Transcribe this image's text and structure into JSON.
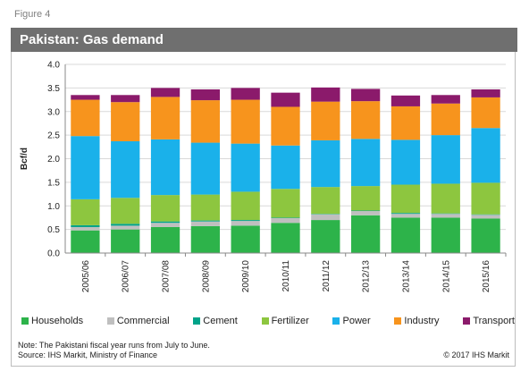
{
  "figure_label": "Figure 4",
  "chart_data": {
    "type": "bar",
    "stacked": true,
    "title": "Pakistan: Gas demand",
    "ylabel": "Bcf/d",
    "xlabel": "",
    "ylim": [
      0,
      4.0
    ],
    "yticks": [
      "0.0",
      "0.5",
      "1.0",
      "1.5",
      "2.0",
      "2.5",
      "3.0",
      "3.5",
      "4.0"
    ],
    "grid": true,
    "legend_position": "bottom",
    "categories": [
      "2005/06",
      "2006/07",
      "2007/08",
      "2008/09",
      "2009/10",
      "2010/11",
      "2011/12",
      "2012/13",
      "2013/14",
      "2014/15",
      "2015/16"
    ],
    "series": [
      {
        "name": "Households",
        "color": "#2db34a",
        "values": [
          0.48,
          0.5,
          0.55,
          0.57,
          0.58,
          0.64,
          0.7,
          0.8,
          0.75,
          0.75,
          0.73
        ]
      },
      {
        "name": "Commercial",
        "color": "#bfbfbf",
        "values": [
          0.07,
          0.08,
          0.09,
          0.1,
          0.1,
          0.1,
          0.12,
          0.09,
          0.08,
          0.08,
          0.08
        ]
      },
      {
        "name": "Cement",
        "color": "#00a389",
        "values": [
          0.04,
          0.04,
          0.03,
          0.02,
          0.02,
          0.01,
          0.01,
          0.01,
          0.02,
          0.01,
          0.01
        ]
      },
      {
        "name": "Fertilizer",
        "color": "#8dc63f",
        "values": [
          0.55,
          0.55,
          0.56,
          0.55,
          0.6,
          0.61,
          0.57,
          0.52,
          0.6,
          0.63,
          0.67
        ]
      },
      {
        "name": "Power",
        "color": "#1ab1ea",
        "values": [
          1.34,
          1.2,
          1.18,
          1.1,
          1.02,
          0.92,
          0.99,
          1.0,
          0.95,
          1.03,
          1.16
        ]
      },
      {
        "name": "Industry",
        "color": "#f7941d",
        "values": [
          0.77,
          0.83,
          0.9,
          0.9,
          0.93,
          0.82,
          0.82,
          0.8,
          0.71,
          0.67,
          0.65
        ]
      },
      {
        "name": "Transport",
        "color": "#8b1a6b",
        "values": [
          0.1,
          0.15,
          0.19,
          0.23,
          0.25,
          0.3,
          0.3,
          0.26,
          0.23,
          0.18,
          0.17
        ]
      }
    ]
  },
  "note": {
    "line1": "Note: The Pakistani  fiscal year runs from July to June.",
    "line2": "Source:  IHS Markit, Ministry of Finance"
  },
  "copyright": "© 2017  IHS Markit"
}
